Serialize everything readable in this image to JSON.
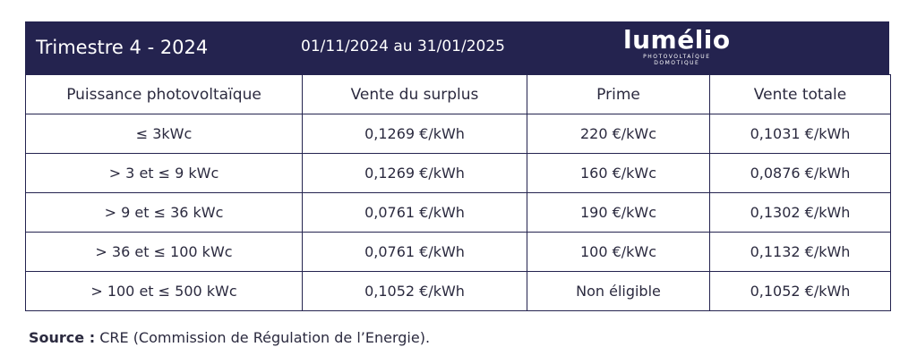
{
  "header": {
    "title": "Trimestre 4 - 2024",
    "period": "01/11/2024 au 31/01/2025",
    "logo": {
      "name": "lumélio",
      "tagline": [
        "PHOTOVOLTAÏQUE",
        "DOMOTIQUE"
      ]
    }
  },
  "table": {
    "columns": [
      "Puissance photovoltaïque",
      "Vente du surplus",
      "Prime",
      "Vente totale"
    ],
    "rows": [
      [
        "≤ 3kWc",
        "0,1269 €/kWh",
        "220 €/kWc",
        "0,1031 €/kWh"
      ],
      [
        "> 3 et ≤ 9 kWc",
        "0,1269 €/kWh",
        "160 €/kWc",
        "0,0876 €/kWh"
      ],
      [
        "> 9 et ≤ 36 kWc",
        "0,0761 €/kWh",
        "190 €/kWc",
        "0,1302 €/kWh"
      ],
      [
        "> 36 et ≤ 100 kWc",
        "0,0761 €/kWh",
        "100 €/kWc",
        "0,1132 €/kWh"
      ],
      [
        "> 100 et ≤ 500 kWc",
        "0,1052 €/kWh",
        "Non éligible",
        "0,1052 €/kWh"
      ]
    ]
  },
  "source": {
    "label": "Source :",
    "text": "CRE (Commission de Régulation de l’Energie)."
  }
}
